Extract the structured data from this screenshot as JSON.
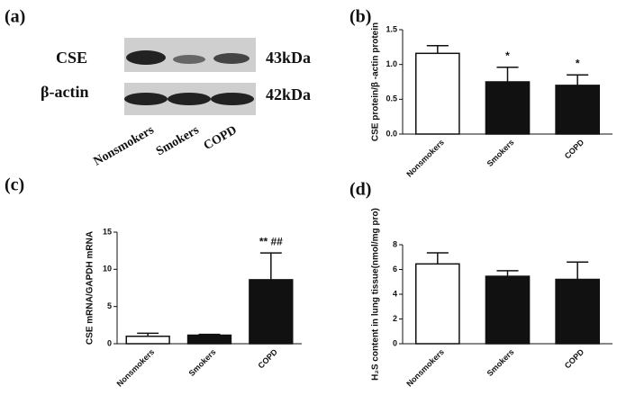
{
  "blot": {
    "panel": "(a)",
    "rows": [
      {
        "label": "CSE",
        "size": "43kDa"
      },
      {
        "label": "β-actin",
        "size": "42kDa"
      }
    ],
    "lanes": [
      "Nonsmokers",
      "Smokers",
      "COPD"
    ]
  },
  "chart_data": [
    {
      "type": "bar",
      "panel": "(b)",
      "ylabel": "CSE protein/β -actin protein",
      "categories": [
        "Nonsmokers",
        "Smokers",
        "COPD"
      ],
      "values": [
        1.16,
        0.75,
        0.7
      ],
      "errors": [
        0.11,
        0.21,
        0.15
      ],
      "colors": [
        "#ffffff",
        "#111111",
        "#111111"
      ],
      "annotations": [
        null,
        "*",
        "*"
      ],
      "ylim": [
        0,
        1.5
      ],
      "yticks": [
        {
          "value": 0,
          "label": "0.0"
        },
        0.5,
        {
          "value": 1,
          "label": "1.0"
        },
        1.5
      ]
    },
    {
      "type": "bar",
      "panel": "(c)",
      "ylabel": "CSE mRNA/GAPDH mRNA",
      "categories": [
        "Nonsmokers",
        "Smokers",
        "COPD"
      ],
      "values": [
        1.0,
        1.15,
        8.6
      ],
      "errors": [
        0.4,
        0.1,
        3.6
      ],
      "colors": [
        "#ffffff",
        "#111111",
        "#111111"
      ],
      "annotations": [
        null,
        null,
        "** ##"
      ],
      "ylim": [
        0,
        15
      ],
      "yticks": [
        0,
        5,
        10,
        15
      ]
    },
    {
      "type": "bar",
      "panel": "(d)",
      "ylabel": "H₂S content in lung tissue(nmol/mg pro)",
      "categories": [
        "Nonsmokers",
        "Smokers",
        "COPD"
      ],
      "values": [
        6.45,
        5.45,
        5.2
      ],
      "errors": [
        0.9,
        0.45,
        1.4
      ],
      "colors": [
        "#ffffff",
        "#111111",
        "#111111"
      ],
      "annotations": [
        null,
        null,
        null
      ],
      "ylim": [
        0,
        8
      ],
      "yticks": [
        0,
        2,
        4,
        6,
        8
      ]
    }
  ]
}
